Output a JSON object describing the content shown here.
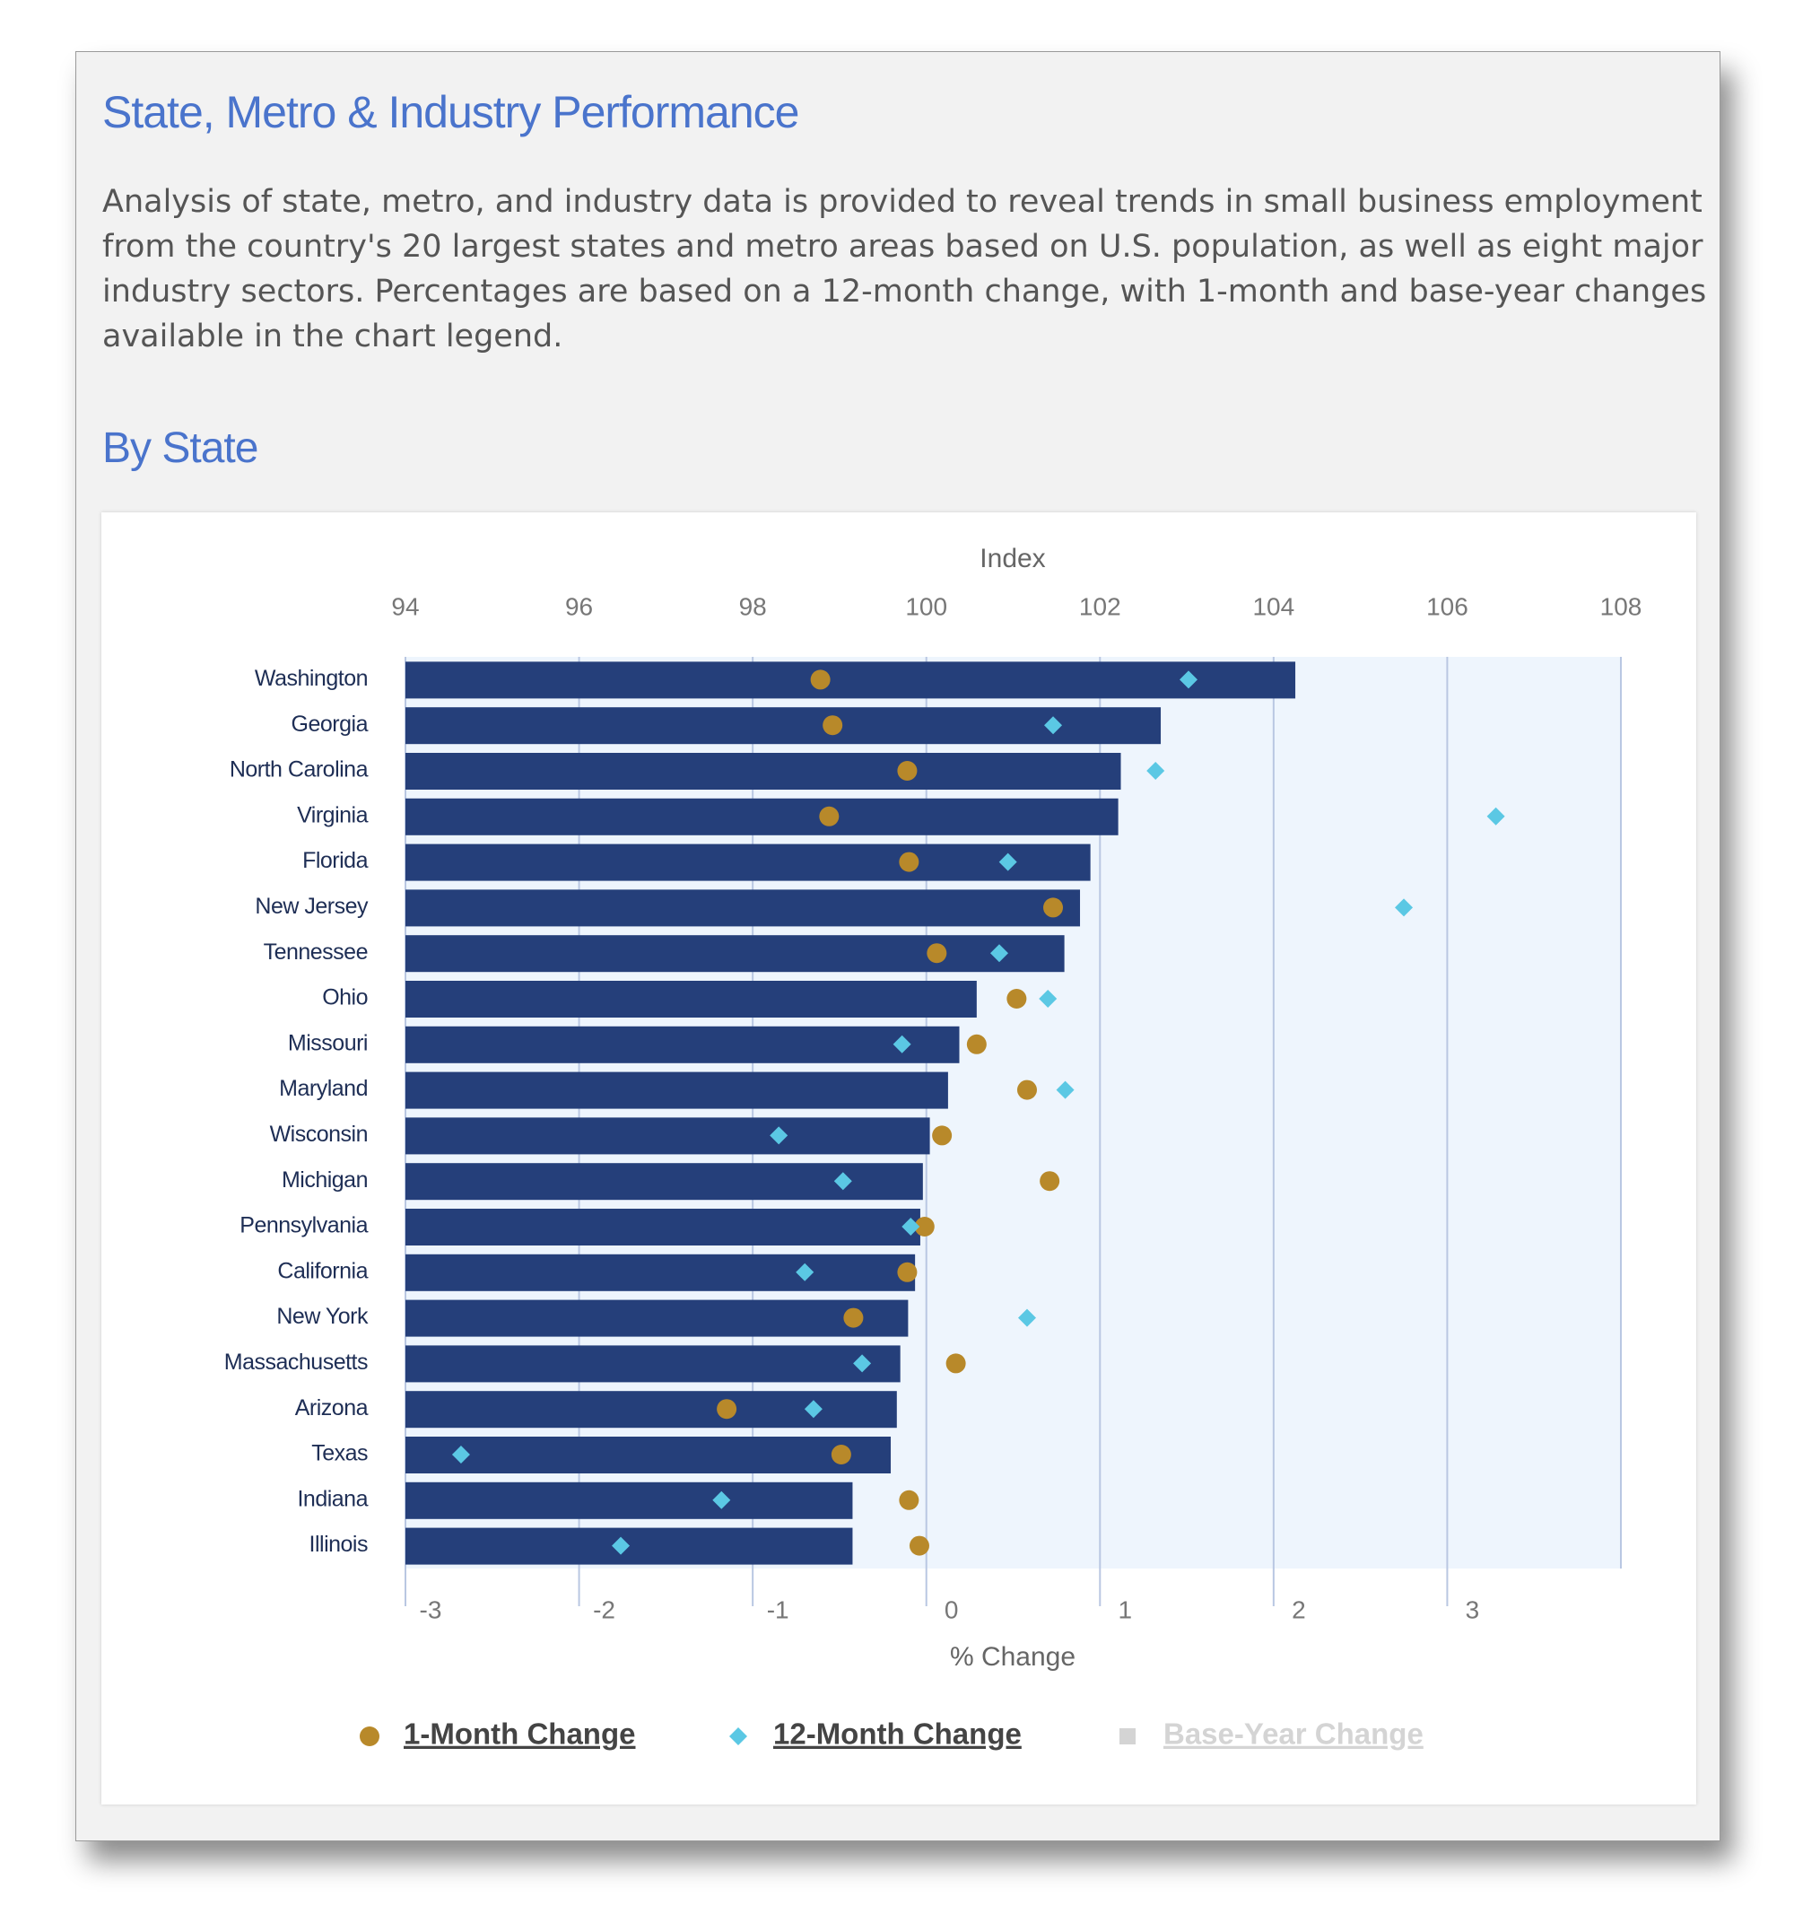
{
  "header": {
    "title": "State, Metro & Industry Performance",
    "description": "Analysis of state, metro, and industry data is provided to reveal trends in small business employment from the country's 20 largest states and metro areas based on U.S. population, as well as eight major industry sectors. Percentages are based on a 12-month change, with 1-month and base-year changes available in the chart legend."
  },
  "section_title": "By State",
  "chart_data": {
    "type": "bar",
    "x2label": "Index",
    "xlabel": "% Change",
    "categories": [
      "Washington",
      "Georgia",
      "North Carolina",
      "Virginia",
      "Florida",
      "New Jersey",
      "Tennessee",
      "Ohio",
      "Missouri",
      "Maryland",
      "Wisconsin",
      "Michigan",
      "Pennsylvania",
      "California",
      "New York",
      "Massachusetts",
      "Arizona",
      "Texas",
      "Indiana",
      "Illinois"
    ],
    "bars": {
      "color": "#253f7a",
      "values": [
        104.25,
        102.7,
        102.24,
        102.21,
        101.89,
        101.77,
        101.59,
        100.58,
        100.38,
        100.25,
        100.04,
        99.96,
        99.93,
        99.87,
        99.79,
        99.7,
        99.66,
        99.59,
        99.15,
        99.15
      ]
    },
    "x2lim": [
      94,
      108
    ],
    "x2ticks": [
      94,
      96,
      98,
      100,
      102,
      104,
      106,
      108
    ],
    "xlim": [
      -3,
      4
    ],
    "xticks": [
      -3,
      -2,
      -1,
      0,
      1,
      2,
      3
    ],
    "series": [
      {
        "name": "1-Month Change",
        "color": "#b8892a",
        "marker": "circle",
        "values": [
          -0.61,
          -0.54,
          -0.11,
          -0.56,
          -0.1,
          0.73,
          0.06,
          0.52,
          0.29,
          0.58,
          0.09,
          0.71,
          -0.01,
          -0.11,
          -0.42,
          0.17,
          -1.15,
          -0.49,
          -0.1,
          -0.04
        ]
      },
      {
        "name": "12-Month Change",
        "color": "#5bc8e4",
        "marker": "diamond",
        "values": [
          1.51,
          0.73,
          1.32,
          3.28,
          0.47,
          2.75,
          0.42,
          0.7,
          -0.14,
          0.8,
          -0.85,
          -0.48,
          -0.09,
          -0.7,
          0.58,
          -0.37,
          -0.65,
          -2.68,
          -1.18,
          -1.76
        ]
      }
    ],
    "legend_inactive": {
      "name": "Base-Year Change",
      "color": "#d4d4d4"
    },
    "grid": true
  }
}
